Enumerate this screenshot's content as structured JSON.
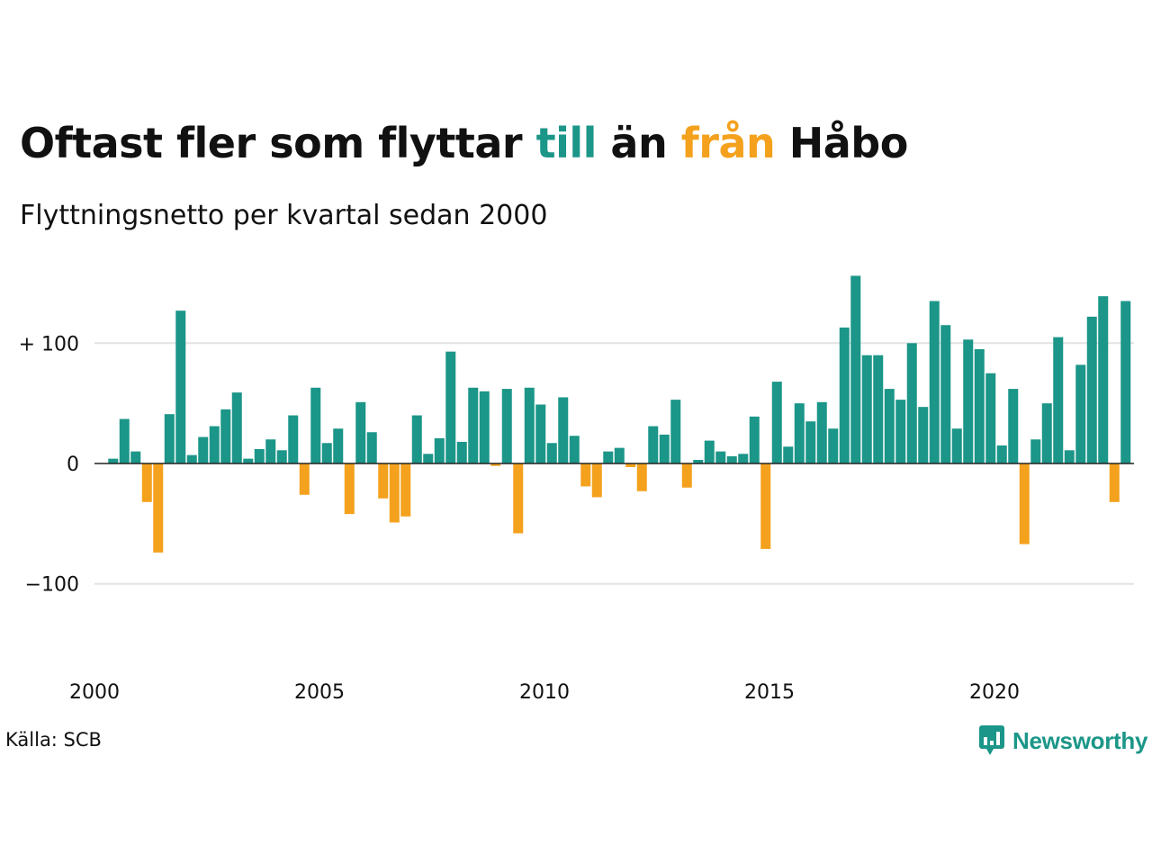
{
  "header": {
    "title_part1": "Oftast fler som flyttar ",
    "title_up": "till",
    "title_part2": " än ",
    "title_down": "från",
    "title_part3": " Håbo",
    "subtitle": "Flyttningsnetto per kvartal sedan 2000"
  },
  "footer": {
    "source": "Källa: SCB",
    "logo_text": "Newsworthy",
    "logo_icon": "newsworthy-chart-bubble-icon"
  },
  "colors": {
    "positive": "#1b9688",
    "negative": "#f4a11d",
    "grid": "#e3e3e3",
    "zero_line": "#222222"
  },
  "chart_data": {
    "type": "bar",
    "title": "Oftast fler som flyttar till än från Håbo",
    "subtitle": "Flyttningsnetto per kvartal sedan 2000",
    "xlabel": "",
    "ylabel": "",
    "ylim": [
      -170,
      160
    ],
    "x_start": 2000,
    "quarters_per_year": 4,
    "y_ticks": [
      {
        "value": 100,
        "label": "+ 100"
      },
      {
        "value": 0,
        "label": "0"
      },
      {
        "value": -100,
        "label": "−100"
      }
    ],
    "x_ticks": [
      {
        "year": 2000,
        "label": "2000"
      },
      {
        "year": 2005,
        "label": "2005"
      },
      {
        "year": 2010,
        "label": "2010"
      },
      {
        "year": 2015,
        "label": "2015"
      },
      {
        "year": 2020,
        "label": "2020"
      }
    ],
    "grid": true,
    "values": [
      0,
      4,
      37,
      10,
      -32,
      -74,
      41,
      127,
      7,
      22,
      31,
      45,
      59,
      4,
      12,
      20,
      11,
      40,
      -26,
      63,
      17,
      29,
      -42,
      51,
      26,
      -29,
      -49,
      -44,
      40,
      8,
      21,
      93,
      18,
      63,
      60,
      -2,
      62,
      -58,
      63,
      49,
      17,
      55,
      23,
      -19,
      -28,
      10,
      13,
      -3,
      -23,
      31,
      24,
      53,
      -20,
      3,
      19,
      10,
      6,
      8,
      39,
      -71,
      68,
      14,
      50,
      35,
      51,
      29,
      113,
      156,
      90,
      90,
      62,
      53,
      100,
      47,
      135,
      115,
      29,
      103,
      95,
      75,
      15,
      62,
      -67,
      20,
      50,
      105,
      11,
      82,
      122,
      139,
      -32,
      135
    ]
  }
}
